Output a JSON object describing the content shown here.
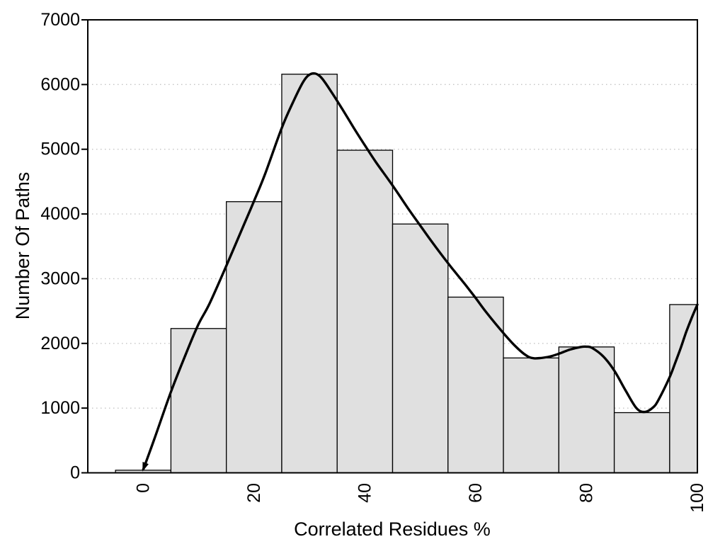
{
  "figure": {
    "background": "#ffffff"
  },
  "chart_data": {
    "type": "bar",
    "subtype": "histogram-with-density-curve",
    "title": "",
    "xlabel": "Correlated Residues %",
    "ylabel": "Number Of Paths",
    "xlim": [
      -10,
      100
    ],
    "ylim": [
      0,
      7000
    ],
    "xticks": [
      0,
      20,
      40,
      60,
      80,
      100
    ],
    "yticks": [
      0,
      1000,
      2000,
      3000,
      4000,
      5000,
      6000,
      7000
    ],
    "grid": "horizontal-dotted",
    "legend": "none",
    "x_tick_label_rotation": -90,
    "bins": {
      "start": -5,
      "width": 10,
      "clip_max": 100
    },
    "categories": [
      "-5-5",
      "5-15",
      "15-25",
      "25-35",
      "35-45",
      "45-55",
      "55-65",
      "65-75",
      "75-85",
      "85-95",
      "95-100"
    ],
    "values": [
      40,
      2230,
      4190,
      6160,
      4985,
      3845,
      2715,
      1775,
      1945,
      930,
      2600
    ],
    "series": [
      {
        "name": "histogram",
        "type": "bar",
        "values": [
          40,
          2230,
          4190,
          6160,
          4985,
          3845,
          2715,
          1775,
          1945,
          930,
          2600
        ]
      },
      {
        "name": "density-curve",
        "type": "line",
        "points": [
          [
            0,
            50
          ],
          [
            2,
            520
          ],
          [
            5,
            1250
          ],
          [
            8,
            1900
          ],
          [
            10,
            2300
          ],
          [
            12,
            2620
          ],
          [
            15,
            3200
          ],
          [
            18,
            3800
          ],
          [
            20,
            4200
          ],
          [
            22,
            4620
          ],
          [
            25,
            5330
          ],
          [
            27,
            5720
          ],
          [
            29,
            6060
          ],
          [
            30.5,
            6170
          ],
          [
            32,
            6120
          ],
          [
            34,
            5880
          ],
          [
            36,
            5610
          ],
          [
            38,
            5330
          ],
          [
            40,
            5060
          ],
          [
            42,
            4800
          ],
          [
            45,
            4440
          ],
          [
            48,
            4060
          ],
          [
            50,
            3820
          ],
          [
            52,
            3580
          ],
          [
            55,
            3240
          ],
          [
            58,
            2920
          ],
          [
            60,
            2700
          ],
          [
            62,
            2470
          ],
          [
            65,
            2160
          ],
          [
            67,
            1970
          ],
          [
            69,
            1820
          ],
          [
            70.5,
            1770
          ],
          [
            73,
            1790
          ],
          [
            75,
            1840
          ],
          [
            77,
            1905
          ],
          [
            79,
            1945
          ],
          [
            80,
            1950
          ],
          [
            81,
            1930
          ],
          [
            83,
            1800
          ],
          [
            85,
            1580
          ],
          [
            87,
            1280
          ],
          [
            89,
            1000
          ],
          [
            90.5,
            940
          ],
          [
            92,
            1010
          ],
          [
            93,
            1130
          ],
          [
            95,
            1480
          ],
          [
            96,
            1700
          ],
          [
            97,
            1930
          ],
          [
            98,
            2180
          ],
          [
            99,
            2400
          ],
          [
            100,
            2600
          ]
        ]
      }
    ],
    "colors": {
      "bar_fill": "#e0e0e0",
      "bar_stroke": "#000000",
      "curve": "#000000",
      "grid": "#c4c4c4",
      "axis": "#000000",
      "text": "#000000"
    }
  }
}
